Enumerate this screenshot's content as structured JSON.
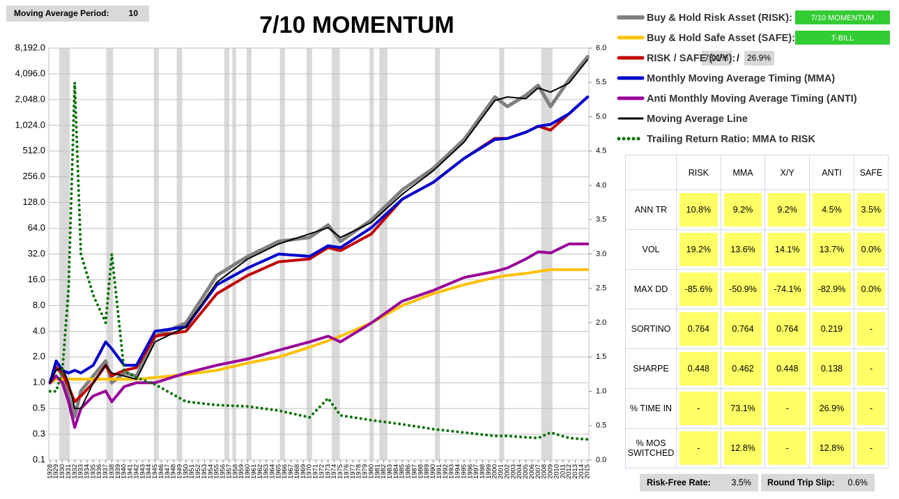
{
  "header": {
    "period_label": "Moving Average Period:",
    "period_value": "10"
  },
  "inputs": {
    "risk_asset": "7/10 MOMENTUM",
    "safe_asset": "T-BILL",
    "risk_weight": "73.1%",
    "weight_separator": "/",
    "safe_weight": "26.9%"
  },
  "footer": {
    "rf_label": "Risk-Free Rate:",
    "rf_value": "3.5%",
    "slip_label": "Round Trip Slip:",
    "slip_value": "0.6%"
  },
  "table": {
    "columns": [
      "RISK",
      "MMA",
      "X/Y",
      "ANTI",
      "SAFE"
    ],
    "rows": [
      {
        "label": "ANN TR",
        "cells": [
          "10.8%",
          "9.2%",
          "9.2%",
          "4.5%",
          "3.5%"
        ]
      },
      {
        "label": "VOL",
        "cells": [
          "19.2%",
          "13.6%",
          "14.1%",
          "13.7%",
          "0.0%"
        ]
      },
      {
        "label": "MAX DD",
        "cells": [
          "-85.6%",
          "-50.9%",
          "-74.1%",
          "-82.9%",
          "0.0%"
        ]
      },
      {
        "label": "SORTINO",
        "cells": [
          "0.764",
          "0.764",
          "0.764",
          "0.219",
          "-"
        ]
      },
      {
        "label": "SHARPE",
        "cells": [
          "0.448",
          "0.462",
          "0.448",
          "0.138",
          "-"
        ]
      },
      {
        "label": "% TIME IN",
        "cells": [
          "-",
          "73.1%",
          "-",
          "26.9%",
          "-"
        ]
      },
      {
        "label": "% MOS SWITCHED",
        "cells": [
          "-",
          "12.8%",
          "-",
          "12.8%",
          "-"
        ]
      }
    ]
  },
  "chart_data": {
    "type": "line",
    "title": "7/10 MOMENTUM",
    "log_scale": true,
    "grid": true,
    "x": [
      1928,
      1929,
      1930,
      1931,
      1932,
      1933,
      1935,
      1937,
      1938,
      1940,
      1942,
      1945,
      1950,
      1955,
      1960,
      1965,
      1970,
      1973,
      1975,
      1980,
      1985,
      1990,
      1995,
      2000,
      2002,
      2005,
      2007,
      2009,
      2012,
      2015
    ],
    "xlim": [
      1927.8,
      2015.2
    ],
    "xticks": [
      1928,
      1929,
      1930,
      1931,
      1932,
      1933,
      1934,
      1935,
      1936,
      1937,
      1938,
      1939,
      1940,
      1941,
      1942,
      1943,
      1944,
      1945,
      1946,
      1947,
      1948,
      1949,
      1950,
      1951,
      1952,
      1953,
      1954,
      1955,
      1956,
      1957,
      1958,
      1959,
      1960,
      1961,
      1962,
      1963,
      1964,
      1965,
      1966,
      1967,
      1968,
      1969,
      1970,
      1971,
      1972,
      1973,
      1974,
      1975,
      1976,
      1977,
      1978,
      1979,
      1980,
      1981,
      1982,
      1983,
      1984,
      1985,
      1986,
      1987,
      1988,
      1989,
      1990,
      1991,
      1992,
      1993,
      1994,
      1995,
      1996,
      1997,
      1998,
      1999,
      2000,
      2001,
      2002,
      2003,
      2004,
      2005,
      2006,
      2007,
      2008,
      2009,
      2010,
      2011,
      2012,
      2013,
      2014,
      2015
    ],
    "ylim": [
      0.125,
      8192
    ],
    "yticks": [
      {
        "value": 0.125,
        "label": "0.1"
      },
      {
        "value": 0.25,
        "label": "0.3"
      },
      0.5,
      {
        "value": 1,
        "label": "1.0"
      },
      {
        "value": 2,
        "label": "2.0"
      },
      {
        "value": 4,
        "label": "4.0"
      },
      {
        "value": 8,
        "label": "8.0"
      },
      {
        "value": 16,
        "label": "16.0"
      },
      {
        "value": 32,
        "label": "32.0"
      },
      {
        "value": 64,
        "label": "64.0"
      },
      {
        "value": 128,
        "label": "128.0"
      },
      {
        "value": 256,
        "label": "256.0"
      },
      {
        "value": 512,
        "label": "512.0"
      },
      {
        "value": 1024,
        "label": "1,024.0"
      },
      {
        "value": 2048,
        "label": "2,048.0"
      },
      {
        "value": 4096,
        "label": "4,096.0"
      },
      {
        "value": 8192,
        "label": "8,192.0"
      }
    ],
    "y2lim": [
      0,
      6
    ],
    "y2ticks": [
      {
        "value": 0,
        "label": "0.0"
      },
      0.5,
      {
        "value": 1,
        "label": "1.0"
      },
      1.5,
      {
        "value": 2,
        "label": "2.0"
      },
      2.5,
      {
        "value": 3,
        "label": "3.0"
      },
      3.5,
      {
        "value": 4,
        "label": "4.0"
      },
      4.5,
      {
        "value": 5,
        "label": "5.0"
      },
      5.5,
      {
        "value": 6,
        "label": "6.0"
      }
    ],
    "shaded_periods": [
      [
        1929.5,
        1931.2
      ],
      [
        1937.1,
        1938.2
      ],
      [
        1944.8,
        1945.6
      ],
      [
        1948.5,
        1949.4
      ],
      [
        1956.2,
        1957.0
      ],
      [
        1957.5,
        1958.1
      ],
      [
        1959.8,
        1960.6
      ],
      [
        1965.2,
        1966.0
      ],
      [
        1969.5,
        1970.4
      ],
      [
        1973.6,
        1974.9
      ],
      [
        1979.7,
        1980.4
      ],
      [
        1981.3,
        1982.6
      ],
      [
        1990.3,
        1991.1
      ],
      [
        2000.7,
        2001.5
      ],
      [
        2007.5,
        2009.3
      ]
    ],
    "series": [
      {
        "name": "Buy & Hold Risk Asset (RISK):",
        "color": "#808080",
        "width": 5,
        "values": [
          1.0,
          1.6,
          1.2,
          0.7,
          0.4,
          0.8,
          1.2,
          1.8,
          1.0,
          1.3,
          1.2,
          3.5,
          5,
          18,
          30,
          45,
          50,
          70,
          45,
          80,
          180,
          320,
          700,
          2200,
          1700,
          2300,
          3000,
          1700,
          3500,
          6500
        ]
      },
      {
        "name": "Buy & Hold Safe Asset (SAFE):",
        "color": "#ffc000",
        "width": 4,
        "values": [
          1.0,
          1.1,
          1.1,
          1.1,
          1.1,
          1.1,
          1.1,
          1.1,
          1.1,
          1.1,
          1.1,
          1.15,
          1.25,
          1.4,
          1.7,
          2.0,
          2.6,
          3.1,
          3.5,
          5,
          8,
          11,
          14,
          17,
          18,
          19,
          20,
          21,
          21,
          21
        ]
      },
      {
        "name": "RISK / SAFE (X/Y):",
        "color": "#c00000",
        "width": 4,
        "values": [
          1.0,
          1.5,
          1.3,
          0.9,
          0.6,
          0.7,
          1.0,
          1.6,
          1.2,
          1.4,
          1.5,
          3.5,
          4,
          11,
          18,
          26,
          28,
          38,
          35,
          55,
          140,
          220,
          420,
          720,
          720,
          850,
          1000,
          900,
          1400,
          2200
        ]
      },
      {
        "name": "Monthly Moving Average Timing (MMA)",
        "color": "#0000cc",
        "width": 4,
        "values": [
          1.0,
          1.8,
          1.4,
          1.3,
          1.4,
          1.3,
          1.6,
          3.0,
          2.5,
          1.6,
          1.6,
          4,
          4.5,
          14,
          22,
          32,
          30,
          40,
          38,
          65,
          140,
          220,
          420,
          700,
          720,
          850,
          1000,
          1050,
          1400,
          2200
        ]
      },
      {
        "name": "Anti Monthly Moving Average Timing (ANTI)",
        "color": "#990099",
        "width": 4,
        "values": [
          1.0,
          1.2,
          1.0,
          0.6,
          0.3,
          0.5,
          0.7,
          0.8,
          0.6,
          0.9,
          1.0,
          1.0,
          1.3,
          1.6,
          1.9,
          2.4,
          3.0,
          3.5,
          3.0,
          5,
          9,
          12,
          17,
          20,
          22,
          28,
          34,
          33,
          42,
          42
        ]
      },
      {
        "name": "Moving Average Line",
        "color": "#000000",
        "width": 2,
        "values": [
          1.0,
          1.4,
          1.5,
          1.0,
          0.5,
          0.5,
          1.0,
          1.6,
          1.3,
          1.2,
          1.1,
          3,
          4.5,
          15,
          28,
          42,
          55,
          65,
          50,
          75,
          160,
          300,
          650,
          2000,
          2200,
          2100,
          2800,
          2500,
          3200,
          6000
        ]
      },
      {
        "name": "Trailing Return Ratio: MMA to RISK",
        "color": "#007000",
        "width": 4,
        "dotted": true,
        "axis": "y2",
        "values": [
          1.0,
          1.0,
          1.3,
          2.5,
          5.5,
          3.0,
          2.4,
          2.0,
          3.0,
          1.3,
          1.2,
          1.1,
          0.85,
          0.8,
          0.78,
          0.72,
          0.62,
          0.9,
          0.65,
          0.58,
          0.52,
          0.45,
          0.4,
          0.35,
          0.35,
          0.33,
          0.32,
          0.4,
          0.32,
          0.3
        ]
      }
    ]
  }
}
